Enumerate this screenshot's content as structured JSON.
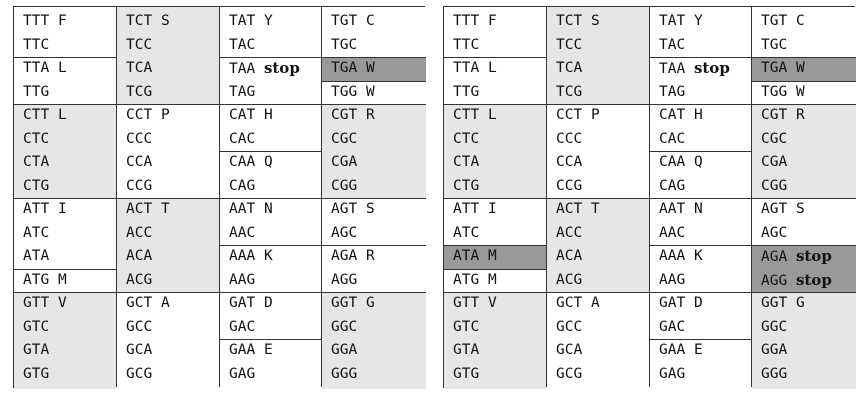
{
  "tables": [
    {
      "id": "left",
      "columns": [
        [
          {
            "codon": "TTT",
            "aa": "F",
            "shade": "none",
            "group_start": true
          },
          {
            "codon": "TTC",
            "aa": "",
            "shade": "none"
          },
          {
            "codon": "TTA",
            "aa": "L",
            "shade": "none",
            "group_start": true
          },
          {
            "codon": "TTG",
            "aa": "",
            "shade": "none"
          },
          {
            "codon": "CTT",
            "aa": "L",
            "shade": "light",
            "group_start": true
          },
          {
            "codon": "CTC",
            "aa": "",
            "shade": "light"
          },
          {
            "codon": "CTA",
            "aa": "",
            "shade": "light"
          },
          {
            "codon": "CTG",
            "aa": "",
            "shade": "light"
          },
          {
            "codon": "ATT",
            "aa": "I",
            "shade": "none",
            "group_start": true
          },
          {
            "codon": "ATC",
            "aa": "",
            "shade": "none"
          },
          {
            "codon": "ATA",
            "aa": "",
            "shade": "none"
          },
          {
            "codon": "ATG",
            "aa": "M",
            "shade": "none",
            "group_start": true
          },
          {
            "codon": "GTT",
            "aa": "V",
            "shade": "light",
            "group_start": true
          },
          {
            "codon": "GTC",
            "aa": "",
            "shade": "light"
          },
          {
            "codon": "GTA",
            "aa": "",
            "shade": "light"
          },
          {
            "codon": "GTG",
            "aa": "",
            "shade": "light"
          }
        ],
        [
          {
            "codon": "TCT",
            "aa": "S",
            "shade": "light",
            "group_start": true
          },
          {
            "codon": "TCC",
            "aa": "",
            "shade": "light"
          },
          {
            "codon": "TCA",
            "aa": "",
            "shade": "light"
          },
          {
            "codon": "TCG",
            "aa": "",
            "shade": "light"
          },
          {
            "codon": "CCT",
            "aa": "P",
            "shade": "none",
            "group_start": true
          },
          {
            "codon": "CCC",
            "aa": "",
            "shade": "none"
          },
          {
            "codon": "CCA",
            "aa": "",
            "shade": "none"
          },
          {
            "codon": "CCG",
            "aa": "",
            "shade": "none"
          },
          {
            "codon": "ACT",
            "aa": "T",
            "shade": "light",
            "group_start": true
          },
          {
            "codon": "ACC",
            "aa": "",
            "shade": "light"
          },
          {
            "codon": "ACA",
            "aa": "",
            "shade": "light"
          },
          {
            "codon": "ACG",
            "aa": "",
            "shade": "light"
          },
          {
            "codon": "GCT",
            "aa": "A",
            "shade": "none",
            "group_start": true
          },
          {
            "codon": "GCC",
            "aa": "",
            "shade": "none"
          },
          {
            "codon": "GCA",
            "aa": "",
            "shade": "none"
          },
          {
            "codon": "GCG",
            "aa": "",
            "shade": "none"
          }
        ],
        [
          {
            "codon": "TAT",
            "aa": "Y",
            "shade": "none",
            "group_start": true
          },
          {
            "codon": "TAC",
            "aa": "",
            "shade": "none"
          },
          {
            "codon": "TAA",
            "aa": "stop",
            "shade": "none",
            "group_start": true
          },
          {
            "codon": "TAG",
            "aa": "",
            "shade": "none"
          },
          {
            "codon": "CAT",
            "aa": "H",
            "shade": "none",
            "group_start": true
          },
          {
            "codon": "CAC",
            "aa": "",
            "shade": "none"
          },
          {
            "codon": "CAA",
            "aa": "Q",
            "shade": "none",
            "group_start": true
          },
          {
            "codon": "CAG",
            "aa": "",
            "shade": "none"
          },
          {
            "codon": "AAT",
            "aa": "N",
            "shade": "none",
            "group_start": true
          },
          {
            "codon": "AAC",
            "aa": "",
            "shade": "none"
          },
          {
            "codon": "AAA",
            "aa": "K",
            "shade": "none",
            "group_start": true
          },
          {
            "codon": "AAG",
            "aa": "",
            "shade": "none"
          },
          {
            "codon": "GAT",
            "aa": "D",
            "shade": "none",
            "group_start": true
          },
          {
            "codon": "GAC",
            "aa": "",
            "shade": "none"
          },
          {
            "codon": "GAA",
            "aa": "E",
            "shade": "none",
            "group_start": true
          },
          {
            "codon": "GAG",
            "aa": "",
            "shade": "none"
          }
        ],
        [
          {
            "codon": "TGT",
            "aa": "C",
            "shade": "none",
            "group_start": true
          },
          {
            "codon": "TGC",
            "aa": "",
            "shade": "none"
          },
          {
            "codon": "TGA",
            "aa": "W",
            "shade": "dark",
            "group_start": true
          },
          {
            "codon": "TGG",
            "aa": "W",
            "shade": "none",
            "group_start": true
          },
          {
            "codon": "CGT",
            "aa": "R",
            "shade": "light",
            "group_start": true
          },
          {
            "codon": "CGC",
            "aa": "",
            "shade": "light"
          },
          {
            "codon": "CGA",
            "aa": "",
            "shade": "light"
          },
          {
            "codon": "CGG",
            "aa": "",
            "shade": "light"
          },
          {
            "codon": "AGT",
            "aa": "S",
            "shade": "none",
            "group_start": true
          },
          {
            "codon": "AGC",
            "aa": "",
            "shade": "none"
          },
          {
            "codon": "AGA",
            "aa": "R",
            "shade": "none",
            "group_start": true
          },
          {
            "codon": "AGG",
            "aa": "",
            "shade": "none"
          },
          {
            "codon": "GGT",
            "aa": "G",
            "shade": "light",
            "group_start": true
          },
          {
            "codon": "GGC",
            "aa": "",
            "shade": "light"
          },
          {
            "codon": "GGA",
            "aa": "",
            "shade": "light"
          },
          {
            "codon": "GGG",
            "aa": "",
            "shade": "light"
          }
        ]
      ]
    },
    {
      "id": "right",
      "columns": [
        [
          {
            "codon": "TTT",
            "aa": "F",
            "shade": "none",
            "group_start": true
          },
          {
            "codon": "TTC",
            "aa": "",
            "shade": "none"
          },
          {
            "codon": "TTA",
            "aa": "L",
            "shade": "none",
            "group_start": true
          },
          {
            "codon": "TTG",
            "aa": "",
            "shade": "none"
          },
          {
            "codon": "CTT",
            "aa": "L",
            "shade": "light",
            "group_start": true
          },
          {
            "codon": "CTC",
            "aa": "",
            "shade": "light"
          },
          {
            "codon": "CTA",
            "aa": "",
            "shade": "light"
          },
          {
            "codon": "CTG",
            "aa": "",
            "shade": "light"
          },
          {
            "codon": "ATT",
            "aa": "I",
            "shade": "none",
            "group_start": true
          },
          {
            "codon": "ATC",
            "aa": "",
            "shade": "none"
          },
          {
            "codon": "ATA",
            "aa": "M",
            "shade": "dark",
            "group_start": true
          },
          {
            "codon": "ATG",
            "aa": "M",
            "shade": "none",
            "group_start": true
          },
          {
            "codon": "GTT",
            "aa": "V",
            "shade": "light",
            "group_start": true
          },
          {
            "codon": "GTC",
            "aa": "",
            "shade": "light"
          },
          {
            "codon": "GTA",
            "aa": "",
            "shade": "light"
          },
          {
            "codon": "GTG",
            "aa": "",
            "shade": "light"
          }
        ],
        [
          {
            "codon": "TCT",
            "aa": "S",
            "shade": "light",
            "group_start": true
          },
          {
            "codon": "TCC",
            "aa": "",
            "shade": "light"
          },
          {
            "codon": "TCA",
            "aa": "",
            "shade": "light"
          },
          {
            "codon": "TCG",
            "aa": "",
            "shade": "light"
          },
          {
            "codon": "CCT",
            "aa": "P",
            "shade": "none",
            "group_start": true
          },
          {
            "codon": "CCC",
            "aa": "",
            "shade": "none"
          },
          {
            "codon": "CCA",
            "aa": "",
            "shade": "none"
          },
          {
            "codon": "CCG",
            "aa": "",
            "shade": "none"
          },
          {
            "codon": "ACT",
            "aa": "T",
            "shade": "light",
            "group_start": true
          },
          {
            "codon": "ACC",
            "aa": "",
            "shade": "light"
          },
          {
            "codon": "ACA",
            "aa": "",
            "shade": "light"
          },
          {
            "codon": "ACG",
            "aa": "",
            "shade": "light"
          },
          {
            "codon": "GCT",
            "aa": "A",
            "shade": "none",
            "group_start": true
          },
          {
            "codon": "GCC",
            "aa": "",
            "shade": "none"
          },
          {
            "codon": "GCA",
            "aa": "",
            "shade": "none"
          },
          {
            "codon": "GCG",
            "aa": "",
            "shade": "none"
          }
        ],
        [
          {
            "codon": "TAT",
            "aa": "Y",
            "shade": "none",
            "group_start": true
          },
          {
            "codon": "TAC",
            "aa": "",
            "shade": "none"
          },
          {
            "codon": "TAA",
            "aa": "stop",
            "shade": "none",
            "group_start": true
          },
          {
            "codon": "TAG",
            "aa": "",
            "shade": "none"
          },
          {
            "codon": "CAT",
            "aa": "H",
            "shade": "none",
            "group_start": true
          },
          {
            "codon": "CAC",
            "aa": "",
            "shade": "none"
          },
          {
            "codon": "CAA",
            "aa": "Q",
            "shade": "none",
            "group_start": true
          },
          {
            "codon": "CAG",
            "aa": "",
            "shade": "none"
          },
          {
            "codon": "AAT",
            "aa": "N",
            "shade": "none",
            "group_start": true
          },
          {
            "codon": "AAC",
            "aa": "",
            "shade": "none"
          },
          {
            "codon": "AAA",
            "aa": "K",
            "shade": "none",
            "group_start": true
          },
          {
            "codon": "AAG",
            "aa": "",
            "shade": "none"
          },
          {
            "codon": "GAT",
            "aa": "D",
            "shade": "none",
            "group_start": true
          },
          {
            "codon": "GAC",
            "aa": "",
            "shade": "none"
          },
          {
            "codon": "GAA",
            "aa": "E",
            "shade": "none",
            "group_start": true
          },
          {
            "codon": "GAG",
            "aa": "",
            "shade": "none"
          }
        ],
        [
          {
            "codon": "TGT",
            "aa": "C",
            "shade": "none",
            "group_start": true
          },
          {
            "codon": "TGC",
            "aa": "",
            "shade": "none"
          },
          {
            "codon": "TGA",
            "aa": "W",
            "shade": "dark",
            "group_start": true
          },
          {
            "codon": "TGG",
            "aa": "W",
            "shade": "none",
            "group_start": true
          },
          {
            "codon": "CGT",
            "aa": "R",
            "shade": "light",
            "group_start": true
          },
          {
            "codon": "CGC",
            "aa": "",
            "shade": "light"
          },
          {
            "codon": "CGA",
            "aa": "",
            "shade": "light"
          },
          {
            "codon": "CGG",
            "aa": "",
            "shade": "light"
          },
          {
            "codon": "AGT",
            "aa": "S",
            "shade": "none",
            "group_start": true
          },
          {
            "codon": "AGC",
            "aa": "",
            "shade": "none"
          },
          {
            "codon": "AGA",
            "aa": "stop",
            "shade": "dark",
            "group_start": true
          },
          {
            "codon": "AGG",
            "aa": "stop",
            "shade": "dark"
          },
          {
            "codon": "GGT",
            "aa": "G",
            "shade": "light",
            "group_start": true
          },
          {
            "codon": "GGC",
            "aa": "",
            "shade": "light"
          },
          {
            "codon": "GGA",
            "aa": "",
            "shade": "light"
          },
          {
            "codon": "GGG",
            "aa": "",
            "shade": "light"
          }
        ]
      ]
    }
  ],
  "colors": {
    "light_shade": "#e6e6e6",
    "dark_shade": "#999999",
    "border": "#333333"
  }
}
